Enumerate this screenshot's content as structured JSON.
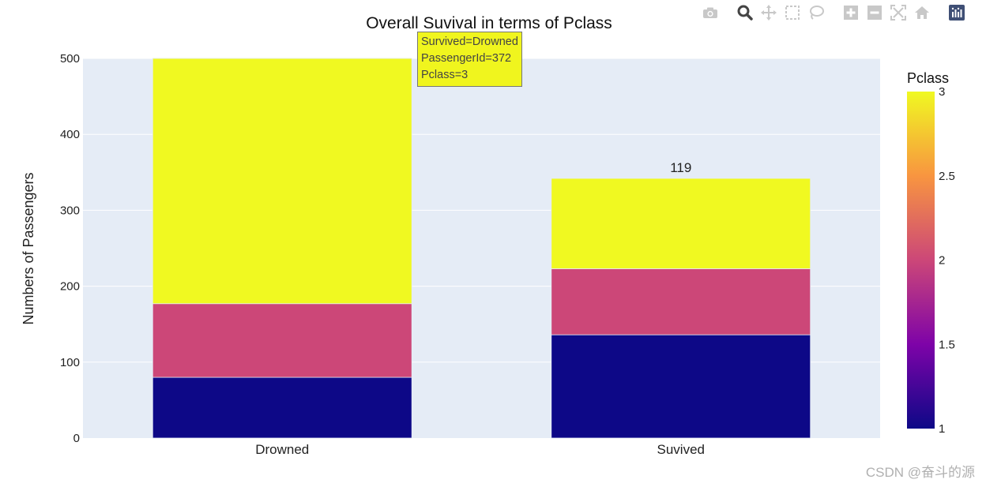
{
  "chart_data": {
    "type": "bar",
    "stacked": true,
    "title": "Overall Suvival in terms of Pclass",
    "ylabel": "Numbers of Passengers",
    "xlabel": "",
    "categories": [
      "Drowned",
      "Suvived"
    ],
    "ylim": [
      0,
      500
    ],
    "yticks": [
      0,
      100,
      200,
      300,
      400,
      500
    ],
    "series": [
      {
        "pclass": 1,
        "color": "#0d0887",
        "values": [
          80,
          136
        ]
      },
      {
        "pclass": 2,
        "color": "#cc4778",
        "values": [
          97,
          87
        ]
      },
      {
        "pclass": 3,
        "color": "#f0f921",
        "values": [
          372,
          119
        ]
      }
    ],
    "data_labels": [
      {
        "category": "Suvived",
        "text": "119"
      }
    ],
    "colorbar": {
      "title": "Pclass",
      "range": [
        1,
        3
      ],
      "ticks": [
        "1",
        "1.5",
        "2",
        "2.5",
        "3"
      ],
      "stops": [
        "#0d0887",
        "#7e03a8",
        "#cc4778",
        "#f89540",
        "#f0f921"
      ]
    },
    "hover": {
      "lines": [
        "Survived=Drowned",
        "PassengerId=372",
        "Pclass=3"
      ],
      "color": "#f0f51e"
    },
    "plot_background": "#e5ecf6",
    "grid": true
  },
  "modebar": {
    "icons": [
      "camera-icon",
      "zoom-icon",
      "pan-icon",
      "box-select-icon",
      "lasso-icon",
      "zoom-in-icon",
      "zoom-out-icon",
      "autoscale-icon",
      "reset-axes-icon",
      "plotly-logo-icon"
    ]
  },
  "watermark": "CSDN @奋斗的源"
}
